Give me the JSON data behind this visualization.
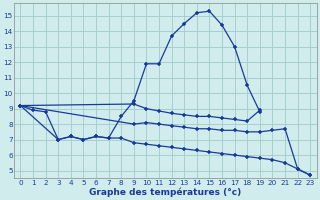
{
  "background_color": "#d0ecec",
  "grid_color": "#a8cece",
  "line_color": "#1a3a9a",
  "xlabel": "Graphe des températures (°c)",
  "xlim": [
    -0.5,
    23.5
  ],
  "ylim": [
    4.5,
    15.8
  ],
  "yticks": [
    5,
    6,
    7,
    8,
    9,
    10,
    11,
    12,
    13,
    14,
    15
  ],
  "xticks": [
    0,
    1,
    2,
    3,
    4,
    5,
    6,
    7,
    8,
    9,
    10,
    11,
    12,
    13,
    14,
    15,
    16,
    17,
    18,
    19,
    20,
    21,
    22,
    23
  ],
  "line1_x": [
    0,
    1,
    2,
    3,
    4,
    5,
    6,
    7,
    8,
    9,
    10,
    11,
    12,
    13,
    14,
    15,
    16,
    17,
    18,
    19
  ],
  "line1_y": [
    9.2,
    8.9,
    8.8,
    7.0,
    7.2,
    7.0,
    7.2,
    7.1,
    8.5,
    9.5,
    11.9,
    11.9,
    13.7,
    14.5,
    15.2,
    15.3,
    14.4,
    13.0,
    10.5,
    8.8
  ],
  "line2_x": [
    0,
    9,
    10,
    11,
    12,
    13,
    14,
    15,
    16,
    17,
    18,
    19
  ],
  "line2_y": [
    9.2,
    9.3,
    9.0,
    8.85,
    8.7,
    8.6,
    8.5,
    8.5,
    8.4,
    8.3,
    8.2,
    8.9
  ],
  "line3_x": [
    0,
    9,
    10,
    11,
    12,
    13,
    14,
    15,
    16,
    17,
    18,
    19,
    20,
    21,
    22,
    23
  ],
  "line3_y": [
    9.2,
    8.0,
    8.1,
    8.0,
    7.9,
    7.8,
    7.7,
    7.7,
    7.6,
    7.6,
    7.5,
    7.5,
    7.6,
    7.7,
    5.1,
    4.7
  ],
  "line4_x": [
    0,
    3,
    4,
    5,
    6,
    7,
    8,
    9,
    10,
    11,
    12,
    13,
    14,
    15,
    16,
    17,
    18,
    19,
    20,
    21,
    22,
    23
  ],
  "line4_y": [
    9.2,
    7.0,
    7.2,
    7.0,
    7.2,
    7.1,
    7.1,
    6.8,
    6.7,
    6.6,
    6.5,
    6.4,
    6.3,
    6.2,
    6.1,
    6.0,
    5.9,
    5.8,
    5.7,
    5.5,
    5.1,
    4.7
  ]
}
